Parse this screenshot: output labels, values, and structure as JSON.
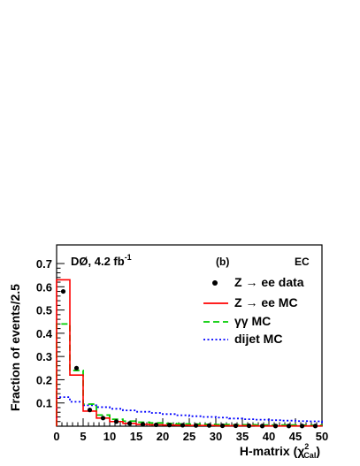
{
  "chart_data": {
    "type": "histogram",
    "experiment": "DØ, 4.2 fb",
    "experiment_sup": "-1",
    "panel": "(b)",
    "region": "EC",
    "xlabel": "H-matrix (χ",
    "xlabel_sup": "2",
    "xlabel_sub": "Cal",
    "xlabel_close": ")",
    "ylabel": "Fraction of events/2.5",
    "xlim": [
      0,
      50
    ],
    "ylim": [
      0,
      0.78
    ],
    "bin_width": 2.5,
    "x_ticks": [
      "0",
      "5",
      "10",
      "15",
      "20",
      "25",
      "30",
      "35",
      "40",
      "45",
      "50"
    ],
    "y_ticks": [
      "0.1",
      "0.2",
      "0.3",
      "0.4",
      "0.5",
      "0.6",
      "0.7"
    ],
    "legend_position": "top-right",
    "series": [
      {
        "name": "Z → ee data",
        "style": "points",
        "color": "#000000",
        "values": [
          0.58,
          0.25,
          0.07,
          0.035,
          0.02,
          0.012,
          0.008,
          0.006,
          0.005,
          0.004,
          0.003,
          0.003,
          0.002,
          0.002,
          0.002,
          0.001,
          0.001,
          0.001,
          0.001,
          0.001
        ]
      },
      {
        "name": "Z → ee MC",
        "style": "solid",
        "color": "#ff0000",
        "values": [
          0.63,
          0.22,
          0.065,
          0.035,
          0.02,
          0.012,
          0.008,
          0.006,
          0.005,
          0.004,
          0.003,
          0.003,
          0.002,
          0.002,
          0.002,
          0.001,
          0.001,
          0.001,
          0.001,
          0.001
        ]
      },
      {
        "name": "γγ MC",
        "style": "dashed",
        "color": "#00cc00",
        "values": [
          0.44,
          0.24,
          0.095,
          0.048,
          0.03,
          0.022,
          0.017,
          0.014,
          0.012,
          0.01,
          0.009,
          0.008,
          0.007,
          0.006,
          0.006,
          0.005,
          0.005,
          0.005,
          0.004,
          0.004
        ]
      },
      {
        "name": "dijet MC",
        "style": "dotted",
        "color": "#0000ff",
        "values": [
          0.125,
          0.105,
          0.09,
          0.082,
          0.075,
          0.068,
          0.062,
          0.057,
          0.052,
          0.047,
          0.043,
          0.04,
          0.037,
          0.033,
          0.03,
          0.028,
          0.026,
          0.024,
          0.022,
          0.021
        ]
      }
    ]
  }
}
